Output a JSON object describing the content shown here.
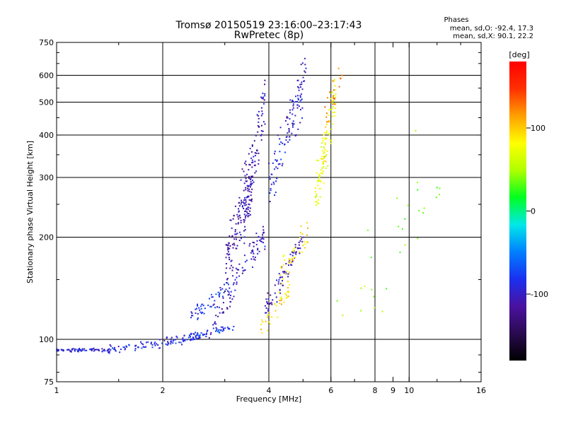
{
  "chart_data": {
    "type": "scatter",
    "title": "Tromsø 20150519 23:16:00–23:17:43",
    "subtitle": "RwPretec (8p)",
    "info": {
      "header": "Phases",
      "line1": "mean, sd,O: -92.4, 17.3",
      "line2": "mean, sd,X:  90.1, 22.2"
    },
    "xlabel": "Frequency [MHz]",
    "ylabel": "Stationary phase Virtual Height [km]",
    "xscale": "log",
    "yscale": "log",
    "xlim": [
      1,
      16
    ],
    "ylim": [
      75,
      750
    ],
    "grid": true,
    "xticks": [
      1,
      2,
      4,
      6,
      8,
      9,
      10,
      16
    ],
    "xticklabels": [
      "1",
      "2",
      "4",
      "6",
      "8",
      "9",
      "10",
      "16"
    ],
    "xgrid": [
      2,
      4,
      6,
      8,
      10
    ],
    "yticks": [
      75,
      100,
      200,
      300,
      400,
      500,
      600,
      750
    ],
    "yticklabels": [
      "75",
      "100",
      "200",
      "300",
      "400",
      "500",
      "600",
      "750"
    ],
    "ygrid": [
      100,
      200,
      300,
      400,
      500,
      600
    ],
    "colorbar": {
      "label": "[deg]",
      "range": [
        -180,
        180
      ],
      "ticks": [
        -100,
        0,
        100
      ],
      "ticklabels": [
        "-100",
        "0",
        "100"
      ],
      "colors": [
        "#000000",
        "#2a0a50",
        "#4a12a0",
        "#1a30f0",
        "#0080ff",
        "#00e8e8",
        "#00ff20",
        "#b0ff00",
        "#ffff00",
        "#ffa000",
        "#ff3000",
        "#ff0000"
      ]
    },
    "series": [
      {
        "segments": [
          {
            "x": [
              1.0,
              1.4
            ],
            "y": [
              93,
              93
            ],
            "n": 70,
            "phase": -95,
            "jit": 0.01
          },
          {
            "x": [
              1.4,
              2.6
            ],
            "y": [
              93,
              102
            ],
            "n": 110,
            "phase": -90,
            "jit": 0.025
          },
          {
            "x": [
              2.3,
              3.2
            ],
            "y": [
              102,
              108
            ],
            "n": 50,
            "phase": -80,
            "jit": 0.02
          },
          {
            "x": [
              2.4,
              3.1
            ],
            "y": [
              115,
              145
            ],
            "n": 50,
            "phase": -80,
            "jit": 0.05
          },
          {
            "x": [
              2.7,
              3.9
            ],
            "y": [
              105,
              205
            ],
            "n": 100,
            "phase": -105,
            "jit": 0.1
          },
          {
            "x": [
              3.0,
              3.6
            ],
            "y": [
              160,
              320
            ],
            "n": 150,
            "phase": -110,
            "jit": 0.18
          },
          {
            "x": [
              3.4,
              3.9
            ],
            "y": [
              220,
              520
            ],
            "n": 90,
            "phase": -105,
            "jit": 0.15
          },
          {
            "x": [
              3.9,
              5.0
            ],
            "y": [
              120,
              200
            ],
            "n": 80,
            "phase": -105,
            "jit": 0.08
          },
          {
            "x": [
              4.0,
              5.0
            ],
            "y": [
              280,
              520
            ],
            "n": 80,
            "phase": -90,
            "jit": 0.15
          },
          {
            "x": [
              4.5,
              5.1
            ],
            "y": [
              420,
              640
            ],
            "n": 40,
            "phase": -100,
            "jit": 0.1
          },
          {
            "x": [
              3.8,
              4.6
            ],
            "y": [
              108,
              140
            ],
            "n": 40,
            "phase": 95,
            "jit": 0.06
          },
          {
            "x": [
              4.3,
              5.2
            ],
            "y": [
              155,
              210
            ],
            "n": 40,
            "phase": 90,
            "jit": 0.08
          },
          {
            "x": [
              5.4,
              6.2
            ],
            "y": [
              260,
              540
            ],
            "n": 110,
            "phase": 75,
            "jit": 0.15
          },
          {
            "x": [
              5.7,
              6.6
            ],
            "y": [
              430,
              630
            ],
            "n": 25,
            "phase": 130,
            "jit": 0.1
          },
          {
            "x": [
              6.2,
              12.5
            ],
            "y": [
              95,
              300
            ],
            "n": 30,
            "phase": 40,
            "jit": 0.4
          }
        ]
      }
    ]
  }
}
